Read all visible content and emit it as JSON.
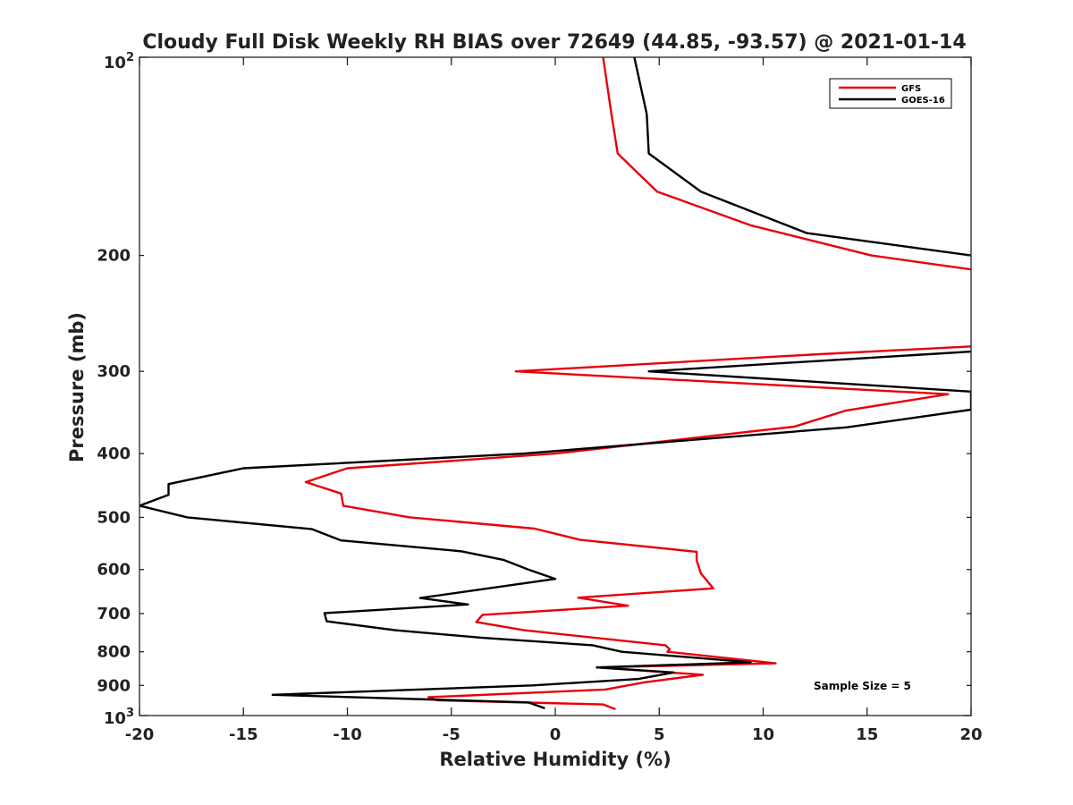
{
  "chart_data": {
    "type": "line",
    "title": "Cloudy Full Disk Weekly RH BIAS over 72649 (44.85, -93.57) @ 2021-01-14",
    "xlabel": "Relative Humidity (%)",
    "ylabel": "Pressure (mb)",
    "xlim": [
      -20,
      20
    ],
    "ylim": [
      100,
      1000
    ],
    "yscale": "log",
    "y_reversed": true,
    "grid": false,
    "legend_position": "top-right",
    "x_ticks": [
      -20,
      -15,
      -10,
      -5,
      0,
      5,
      10,
      15,
      20
    ],
    "x_tick_labels": [
      "-20",
      "-15",
      "-10",
      "-5",
      "0",
      "5",
      "10",
      "15",
      "20"
    ],
    "y_ticks": [
      200,
      300,
      400,
      500,
      600,
      700,
      800,
      900
    ],
    "y_tick_labels": [
      "200",
      "300",
      "400",
      "500",
      "600",
      "700",
      "800",
      "900"
    ],
    "y_end_labels": {
      "top_base": "10",
      "top_exp": "2",
      "bottom_base": "10",
      "bottom_exp": "3"
    },
    "annotation": "Sample Size = 5",
    "series": [
      {
        "name": "GFS",
        "color": "#e8000b",
        "points": [
          [
            2.3,
            100
          ],
          [
            2.7,
            122
          ],
          [
            3.0,
            140
          ],
          [
            4.9,
            160
          ],
          [
            9.4,
            180
          ],
          [
            15.2,
            200
          ],
          [
            20.0,
            210
          ],
          [
            20.0,
            275
          ],
          [
            12.3,
            283
          ],
          [
            -1.9,
            300
          ],
          [
            18.9,
            325
          ],
          [
            14.0,
            344
          ],
          [
            11.5,
            364
          ],
          [
            0.0,
            400
          ],
          [
            -10.0,
            421
          ],
          [
            -12.0,
            442
          ],
          [
            -10.3,
            460
          ],
          [
            -10.2,
            480
          ],
          [
            -7.0,
            500
          ],
          [
            -1.0,
            520
          ],
          [
            1.2,
            541
          ],
          [
            6.8,
            564
          ],
          [
            6.8,
            581
          ],
          [
            7.0,
            608
          ],
          [
            7.6,
            641
          ],
          [
            1.1,
            662
          ],
          [
            3.5,
            681
          ],
          [
            -3.5,
            703
          ],
          [
            -3.8,
            721
          ],
          [
            -1.5,
            742
          ],
          [
            5.3,
            782
          ],
          [
            5.5,
            793
          ],
          [
            5.4,
            800
          ],
          [
            10.6,
            833
          ],
          [
            2.0,
            845
          ],
          [
            7.1,
            867
          ],
          [
            4.3,
            890
          ],
          [
            2.4,
            913
          ],
          [
            -6.1,
            938
          ],
          [
            -5.7,
            948
          ],
          [
            2.3,
            962
          ],
          [
            2.9,
            978
          ]
        ]
      },
      {
        "name": "GOES-16",
        "color": "#000000",
        "points": [
          [
            3.8,
            100
          ],
          [
            4.4,
            122
          ],
          [
            4.5,
            140
          ],
          [
            7.0,
            160
          ],
          [
            12.1,
            185
          ],
          [
            20.0,
            200
          ],
          [
            20.0,
            280
          ],
          [
            17.6,
            283
          ],
          [
            4.5,
            300
          ],
          [
            20.0,
            322
          ],
          [
            20.0,
            343
          ],
          [
            14.0,
            365
          ],
          [
            -1.5,
            400
          ],
          [
            -15.0,
            421
          ],
          [
            -18.6,
            445
          ],
          [
            -18.6,
            462
          ],
          [
            -20.0,
            480
          ],
          [
            -17.7,
            500
          ],
          [
            -11.7,
            521
          ],
          [
            -10.3,
            542
          ],
          [
            -4.5,
            563
          ],
          [
            -2.5,
            580
          ],
          [
            -1.3,
            600
          ],
          [
            0.0,
            620
          ],
          [
            -6.5,
            663
          ],
          [
            -4.2,
            678
          ],
          [
            -11.1,
            699
          ],
          [
            -11.0,
            719
          ],
          [
            -7.7,
            742
          ],
          [
            -3.5,
            762
          ],
          [
            1.8,
            782
          ],
          [
            3.2,
            800
          ],
          [
            9.4,
            830
          ],
          [
            2.0,
            845
          ],
          [
            5.7,
            860
          ],
          [
            4.0,
            880
          ],
          [
            -1.1,
            900
          ],
          [
            -13.6,
            930
          ],
          [
            -1.3,
            955
          ],
          [
            -0.5,
            975
          ]
        ]
      }
    ]
  }
}
